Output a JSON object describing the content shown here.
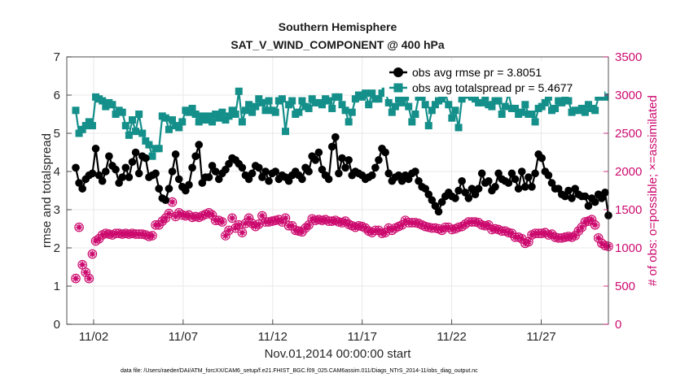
{
  "chart_data": {
    "type": "line",
    "title": "Southern Hemisphere",
    "subtitle": "SAT_V_WIND_COMPONENT @ 400 hPa",
    "xlabel": "Nov.01,2014 00:00:00 start",
    "ylabel": "rmse and totalspread",
    "y2label": "# of obs: o=possible; ×=assimilated",
    "footnote": "data file: /Users/raeder/DAI/ATM_forcXX/CAM6_setup/f.e21.FHIST_BGC.f09_025.CAM6assim.011/Diags_NTrS_2014-11/obs_diag_output.nc",
    "x_range": [
      0.5,
      30.75
    ],
    "ylim": [
      0,
      7
    ],
    "y2lim": [
      0,
      3500
    ],
    "x_ticks": [
      {
        "x": 2,
        "label": "11/02"
      },
      {
        "x": 7,
        "label": "11/07"
      },
      {
        "x": 12,
        "label": "11/12"
      },
      {
        "x": 17,
        "label": "11/17"
      },
      {
        "x": 22,
        "label": "11/22"
      },
      {
        "x": 27,
        "label": "11/27"
      }
    ],
    "y_ticks": [
      "0",
      "1",
      "2",
      "3",
      "4",
      "5",
      "6",
      "7"
    ],
    "y2_ticks": [
      "0",
      "500",
      "1000",
      "1500",
      "2000",
      "2500",
      "3000",
      "3500"
    ],
    "grid": true,
    "legend_position": "top-right",
    "colors": {
      "rmse": "#000000",
      "spread": "#148f8a",
      "obs": "#cc0a6e"
    },
    "series": [
      {
        "name": "obs avg rmse  pr = 3.8051",
        "axis": "left",
        "values": [
          4.1,
          3.7,
          3.55,
          3.8,
          3.9,
          3.95,
          4.6,
          3.9,
          3.75,
          4.0,
          4.4,
          4.15,
          4.05,
          3.7,
          3.85,
          4.1,
          3.85,
          4.25,
          4.5,
          3.95,
          4.4,
          4.35,
          3.85,
          3.9,
          3.95,
          3.55,
          3.3,
          3.25,
          3.55,
          4.0,
          4.45,
          3.8,
          3.6,
          3.5,
          3.65,
          4.1,
          4.4,
          4.7,
          3.7,
          3.85,
          3.85,
          4.15,
          4.0,
          3.8,
          3.95,
          4.05,
          4.2,
          4.35,
          4.3,
          4.2,
          4.1,
          3.9,
          3.8,
          3.95,
          4.15,
          4.1,
          3.85,
          4.0,
          3.75,
          3.95,
          4.0,
          3.8,
          3.9,
          3.85,
          3.75,
          3.9,
          4.0,
          3.9,
          3.8,
          4.1,
          4.0,
          4.4,
          4.3,
          4.5,
          4.05,
          3.9,
          3.8,
          4.65,
          4.9,
          3.95,
          4.35,
          4.1,
          4.3,
          3.9,
          4.0,
          3.95,
          3.9,
          3.8,
          3.85,
          3.9,
          4.1,
          4.3,
          4.6,
          4.5,
          3.95,
          3.75,
          3.85,
          3.9,
          3.75,
          3.9,
          3.8,
          3.95,
          4.0,
          3.75,
          3.6,
          3.55,
          3.4,
          3.25,
          3.1,
          2.95,
          3.2,
          3.35,
          3.45,
          3.35,
          3.3,
          3.5,
          3.75,
          3.45,
          3.3,
          3.55,
          3.4,
          3.55,
          3.95,
          3.7,
          3.75,
          3.5,
          3.6,
          3.95,
          3.8,
          3.75,
          3.7,
          3.95,
          3.8,
          3.55,
          4.0,
          3.6,
          3.85,
          3.6,
          3.95,
          4.45,
          4.35,
          4.0,
          3.9,
          3.7,
          3.55,
          3.55,
          3.4,
          3.35,
          3.5,
          3.3,
          3.55,
          3.4,
          3.35,
          3.35,
          3.1,
          3.3,
          3.2,
          3.4,
          3.3,
          3.45,
          2.85
        ]
      },
      {
        "name": "obs avg totalspread pr = 5.4677",
        "axis": "left",
        "values": [
          5.6,
          5.0,
          5.1,
          5.2,
          5.3,
          5.2,
          5.95,
          5.9,
          5.85,
          5.7,
          5.8,
          5.75,
          5.5,
          5.6,
          5.55,
          5.2,
          4.95,
          5.35,
          5.05,
          5.5,
          5.0,
          4.8,
          4.7,
          4.4,
          4.6,
          4.6,
          5.45,
          5.4,
          5.1,
          5.35,
          5.2,
          5.15,
          5.3,
          5.6,
          5.55,
          5.65,
          5.5,
          5.3,
          5.45,
          5.35,
          5.45,
          5.3,
          5.5,
          5.4,
          5.55,
          5.35,
          5.45,
          5.6,
          5.5,
          6.1,
          5.3,
          5.6,
          5.75,
          5.55,
          5.7,
          5.9,
          5.8,
          5.6,
          5.85,
          5.6,
          5.55,
          5.85,
          5.9,
          5.05,
          5.75,
          5.85,
          5.5,
          5.55,
          5.85,
          5.7,
          5.65,
          5.9,
          5.8,
          5.8,
          5.75,
          5.9,
          5.85,
          5.65,
          5.95,
          5.95,
          5.75,
          5.6,
          5.3,
          5.55,
          5.9,
          6.0,
          5.95,
          6.05,
          5.75,
          6.05,
          5.9,
          5.9,
          6.05,
          6.1,
          5.8,
          5.55,
          5.7,
          5.9,
          5.8,
          5.95,
          5.7,
          5.3,
          5.5,
          5.95,
          5.95,
          5.75,
          5.2,
          5.6,
          5.75,
          5.85,
          5.9,
          6.05,
          5.75,
          5.4,
          5.6,
          5.15,
          5.9,
          6.1,
          6.0,
          5.95,
          5.9,
          5.8,
          5.8,
          5.95,
          5.75,
          5.7,
          5.85,
          5.85,
          5.5,
          5.7,
          6.05,
          5.65,
          5.65,
          5.5,
          5.55,
          5.75,
          5.5,
          5.5,
          5.3,
          5.65,
          5.7,
          5.8,
          5.95,
          5.6,
          5.65,
          5.85,
          5.8,
          5.9,
          5.85,
          5.55,
          5.6,
          5.6,
          5.65,
          5.55,
          5.75,
          5.65,
          5.6,
          5.95,
          6.0,
          5.95
        ]
      },
      {
        "name": "# of obs possible",
        "axis": "right",
        "values": [
          600,
          1270,
          780,
          680,
          600,
          920,
          1090,
          1120,
          1170,
          1190,
          1180,
          1170,
          1190,
          1190,
          1180,
          1190,
          1180,
          1190,
          1180,
          1180,
          1180,
          1170,
          1150,
          1160,
          1300,
          1300,
          1350,
          1390,
          1450,
          1600,
          1410,
          1460,
          1430,
          1420,
          1430,
          1400,
          1410,
          1400,
          1420,
          1440,
          1460,
          1430,
          1360,
          1360,
          1340,
          1160,
          1230,
          1390,
          1260,
          1300,
          1200,
          1320,
          1390,
          1320,
          1280,
          1310,
          1420,
          1340,
          1340,
          1350,
          1360,
          1370,
          1340,
          1390,
          1290,
          1290,
          1230,
          1220,
          1210,
          1260,
          1300,
          1380,
          1360,
          1370,
          1360,
          1370,
          1350,
          1350,
          1360,
          1340,
          1330,
          1350,
          1310,
          1290,
          1270,
          1290,
          1280,
          1260,
          1220,
          1200,
          1230,
          1230,
          1190,
          1200,
          1260,
          1230,
          1260,
          1280,
          1300,
          1360,
          1330,
          1330,
          1330,
          1320,
          1300,
          1280,
          1270,
          1260,
          1260,
          1250,
          1230,
          1270,
          1270,
          1240,
          1250,
          1270,
          1280,
          1310,
          1340,
          1340,
          1340,
          1330,
          1300,
          1290,
          1300,
          1240,
          1250,
          1240,
          1220,
          1220,
          1200,
          1190,
          1140,
          1140,
          1120,
          1060,
          1080,
          1170,
          1190,
          1190,
          1190,
          1200,
          1170,
          1180,
          1140,
          1130,
          1130,
          1140,
          1150,
          1140,
          1160,
          1220,
          1270,
          1340,
          1350,
          1370,
          1300,
          1130,
          1060,
          1030,
          1020
        ]
      },
      {
        "name": "# of obs assimilated",
        "axis": "right",
        "values": [
          600,
          1270,
          780,
          680,
          600,
          920,
          1090,
          1120,
          1170,
          1190,
          1180,
          1170,
          1190,
          1190,
          1180,
          1190,
          1180,
          1190,
          1180,
          1180,
          1180,
          1170,
          1150,
          1160,
          1300,
          1300,
          1350,
          1390,
          1450,
          1600,
          1410,
          1460,
          1430,
          1420,
          1430,
          1400,
          1410,
          1400,
          1420,
          1440,
          1460,
          1430,
          1360,
          1360,
          1340,
          1160,
          1230,
          1390,
          1260,
          1300,
          1200,
          1320,
          1390,
          1320,
          1280,
          1310,
          1420,
          1340,
          1340,
          1350,
          1360,
          1370,
          1340,
          1390,
          1290,
          1290,
          1230,
          1220,
          1210,
          1260,
          1300,
          1380,
          1360,
          1370,
          1360,
          1370,
          1350,
          1350,
          1360,
          1340,
          1330,
          1350,
          1310,
          1290,
          1270,
          1290,
          1280,
          1260,
          1220,
          1200,
          1230,
          1230,
          1190,
          1200,
          1260,
          1230,
          1260,
          1280,
          1300,
          1360,
          1330,
          1330,
          1330,
          1320,
          1300,
          1280,
          1270,
          1260,
          1260,
          1250,
          1230,
          1270,
          1270,
          1240,
          1250,
          1270,
          1280,
          1310,
          1340,
          1340,
          1340,
          1330,
          1300,
          1290,
          1300,
          1240,
          1250,
          1240,
          1220,
          1220,
          1200,
          1190,
          1140,
          1140,
          1120,
          1060,
          1080,
          1170,
          1190,
          1190,
          1190,
          1200,
          1170,
          1180,
          1140,
          1130,
          1130,
          1140,
          1150,
          1140,
          1160,
          1220,
          1270,
          1340,
          1350,
          1370,
          1300,
          1130,
          1060,
          1030,
          1020
        ]
      }
    ]
  }
}
